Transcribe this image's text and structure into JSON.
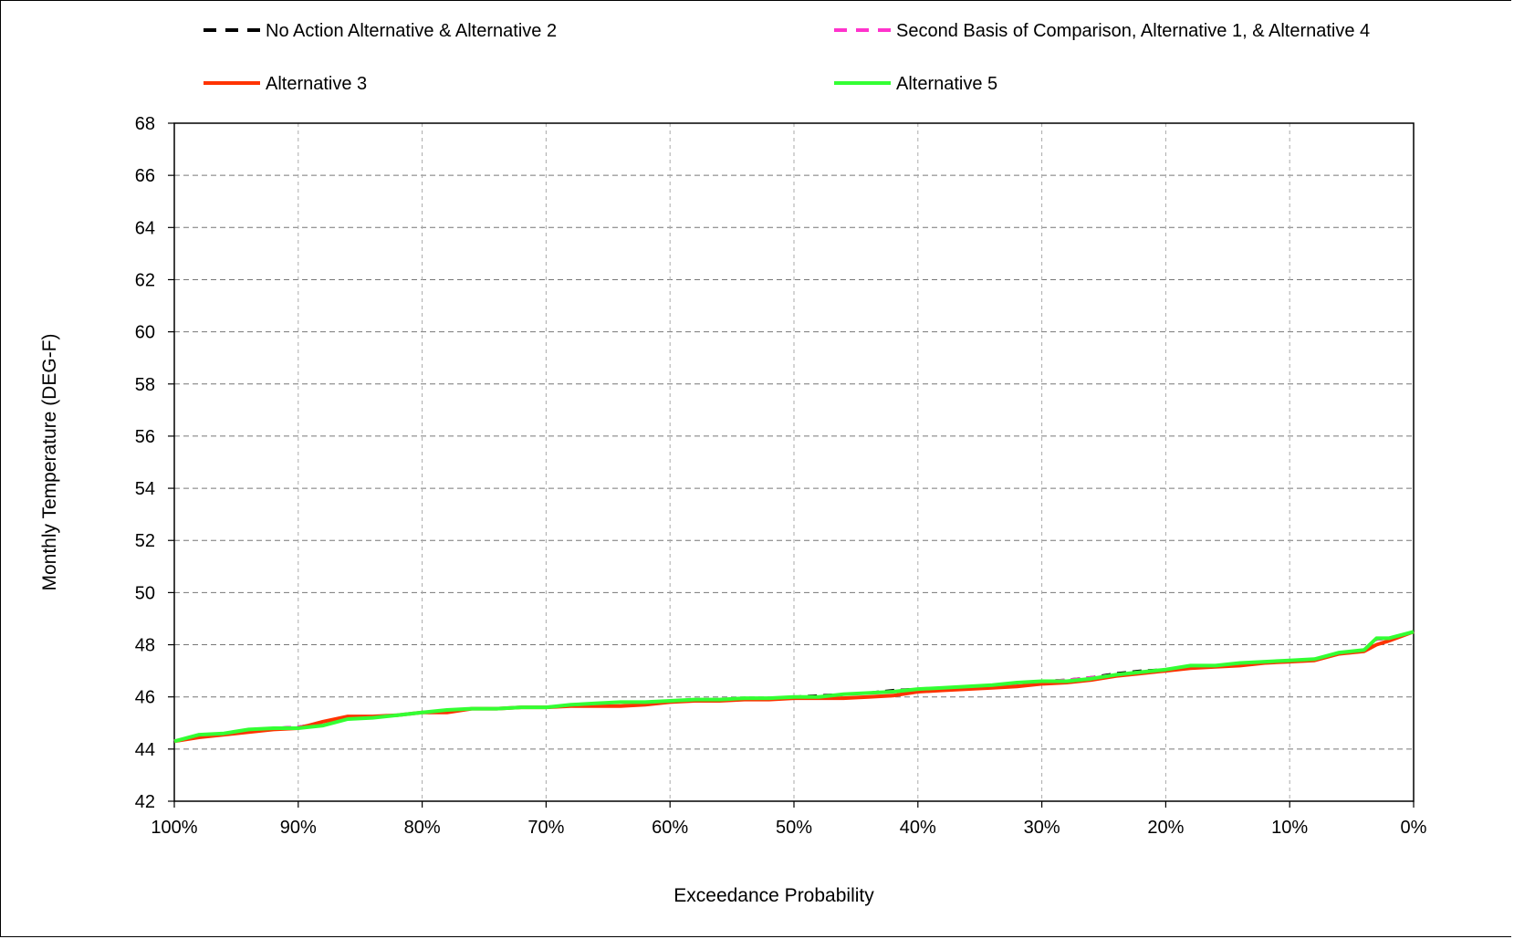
{
  "chart_data": {
    "type": "line",
    "title": "",
    "xlabel": "Exceedance Probability",
    "ylabel": "Monthly Temperature (DEG-F)",
    "xlim": [
      100,
      0
    ],
    "ylim": [
      42,
      68
    ],
    "x_ticks": [
      "100%",
      "90%",
      "80%",
      "70%",
      "60%",
      "50%",
      "40%",
      "30%",
      "20%",
      "10%",
      "0%"
    ],
    "y_ticks": [
      "42",
      "44",
      "46",
      "48",
      "50",
      "52",
      "54",
      "56",
      "58",
      "60",
      "62",
      "64",
      "66",
      "68"
    ],
    "grid": true,
    "legend_position": "top",
    "x": [
      100,
      98,
      96,
      94,
      92,
      90,
      88,
      86,
      84,
      82,
      80,
      78,
      76,
      74,
      72,
      70,
      68,
      66,
      64,
      62,
      60,
      58,
      56,
      54,
      52,
      50,
      48,
      46,
      44,
      42,
      40,
      38,
      36,
      34,
      32,
      30,
      28,
      26,
      24,
      22,
      20,
      18,
      16,
      14,
      12,
      10,
      8,
      6,
      4,
      3,
      2,
      0
    ],
    "series": [
      {
        "name": "No Action Alternative & Alternative 2",
        "color": "#000000",
        "dash": "dashed",
        "values": [
          44.3,
          44.5,
          44.6,
          44.7,
          44.8,
          44.85,
          45.0,
          45.2,
          45.25,
          45.3,
          45.4,
          45.45,
          45.55,
          45.55,
          45.6,
          45.6,
          45.7,
          45.75,
          45.8,
          45.8,
          45.85,
          45.9,
          45.9,
          45.95,
          45.95,
          46.0,
          46.05,
          46.1,
          46.15,
          46.25,
          46.3,
          46.35,
          46.4,
          46.45,
          46.55,
          46.6,
          46.65,
          46.75,
          46.9,
          47.0,
          47.05,
          47.15,
          47.2,
          47.3,
          47.35,
          47.4,
          47.45,
          47.7,
          47.8,
          48.2,
          48.25,
          48.5
        ]
      },
      {
        "name": "Second Basis of Comparison, Alternative 1, & Alternative 4",
        "color": "#ff33cc",
        "dash": "dashed",
        "values": [
          44.3,
          44.5,
          44.6,
          44.7,
          44.8,
          44.85,
          45.0,
          45.2,
          45.25,
          45.3,
          45.4,
          45.45,
          45.55,
          45.55,
          45.6,
          45.6,
          45.7,
          45.75,
          45.8,
          45.8,
          45.85,
          45.9,
          45.9,
          45.95,
          45.95,
          46.0,
          46.0,
          46.1,
          46.15,
          46.2,
          46.3,
          46.35,
          46.4,
          46.45,
          46.5,
          46.6,
          46.65,
          46.75,
          46.85,
          46.95,
          47.0,
          47.15,
          47.2,
          47.3,
          47.35,
          47.4,
          47.45,
          47.7,
          47.8,
          48.2,
          48.25,
          48.5
        ]
      },
      {
        "name": "Alternative 3",
        "color": "#ff3300",
        "dash": "solid",
        "values": [
          44.3,
          44.45,
          44.55,
          44.65,
          44.75,
          44.8,
          45.05,
          45.25,
          45.25,
          45.3,
          45.4,
          45.4,
          45.55,
          45.55,
          45.6,
          45.6,
          45.65,
          45.65,
          45.65,
          45.7,
          45.8,
          45.85,
          45.85,
          45.9,
          45.9,
          45.95,
          45.95,
          45.95,
          46.0,
          46.05,
          46.2,
          46.25,
          46.3,
          46.35,
          46.4,
          46.5,
          46.55,
          46.65,
          46.8,
          46.9,
          47.0,
          47.1,
          47.15,
          47.2,
          47.3,
          47.35,
          47.4,
          47.65,
          47.75,
          48.0,
          48.15,
          48.5
        ]
      },
      {
        "name": "Alternative 5",
        "color": "#33ff33",
        "dash": "solid",
        "values": [
          44.3,
          44.55,
          44.6,
          44.75,
          44.8,
          44.8,
          44.9,
          45.15,
          45.2,
          45.3,
          45.4,
          45.5,
          45.55,
          45.55,
          45.6,
          45.6,
          45.7,
          45.75,
          45.8,
          45.8,
          45.85,
          45.9,
          45.9,
          45.95,
          45.95,
          46.0,
          46.0,
          46.1,
          46.15,
          46.2,
          46.3,
          46.35,
          46.4,
          46.45,
          46.55,
          46.6,
          46.6,
          46.7,
          46.85,
          46.95,
          47.05,
          47.2,
          47.2,
          47.3,
          47.35,
          47.4,
          47.45,
          47.7,
          47.8,
          48.25,
          48.25,
          48.5
        ]
      }
    ]
  }
}
